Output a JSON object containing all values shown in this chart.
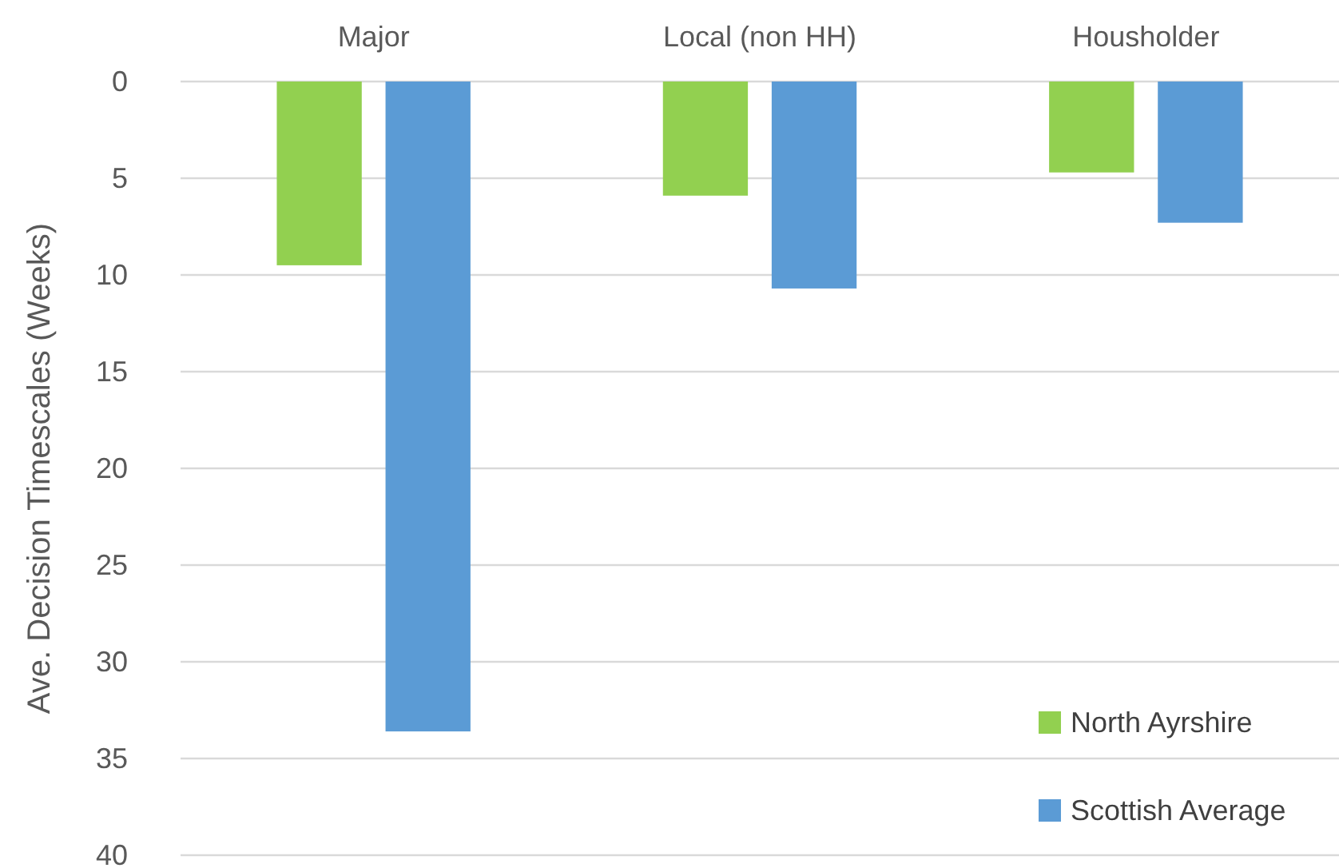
{
  "chart_data": {
    "type": "bar",
    "ylabel": "Ave. Decision Timescales (Weeks)",
    "categories": [
      "Major",
      "Local (non HH)",
      "Housholder"
    ],
    "series": [
      {
        "name": "North Ayrshire",
        "color": "#92d050",
        "values": [
          9.5,
          5.9,
          4.7
        ]
      },
      {
        "name": "Scottish Average",
        "color": "#5b9bd5",
        "values": [
          33.6,
          10.7,
          7.3
        ]
      }
    ],
    "ylim": [
      40,
      0
    ],
    "yticks": [
      0,
      5,
      10,
      15,
      20,
      25,
      30,
      35,
      40
    ],
    "grid": "y",
    "legend": "bottom right"
  }
}
